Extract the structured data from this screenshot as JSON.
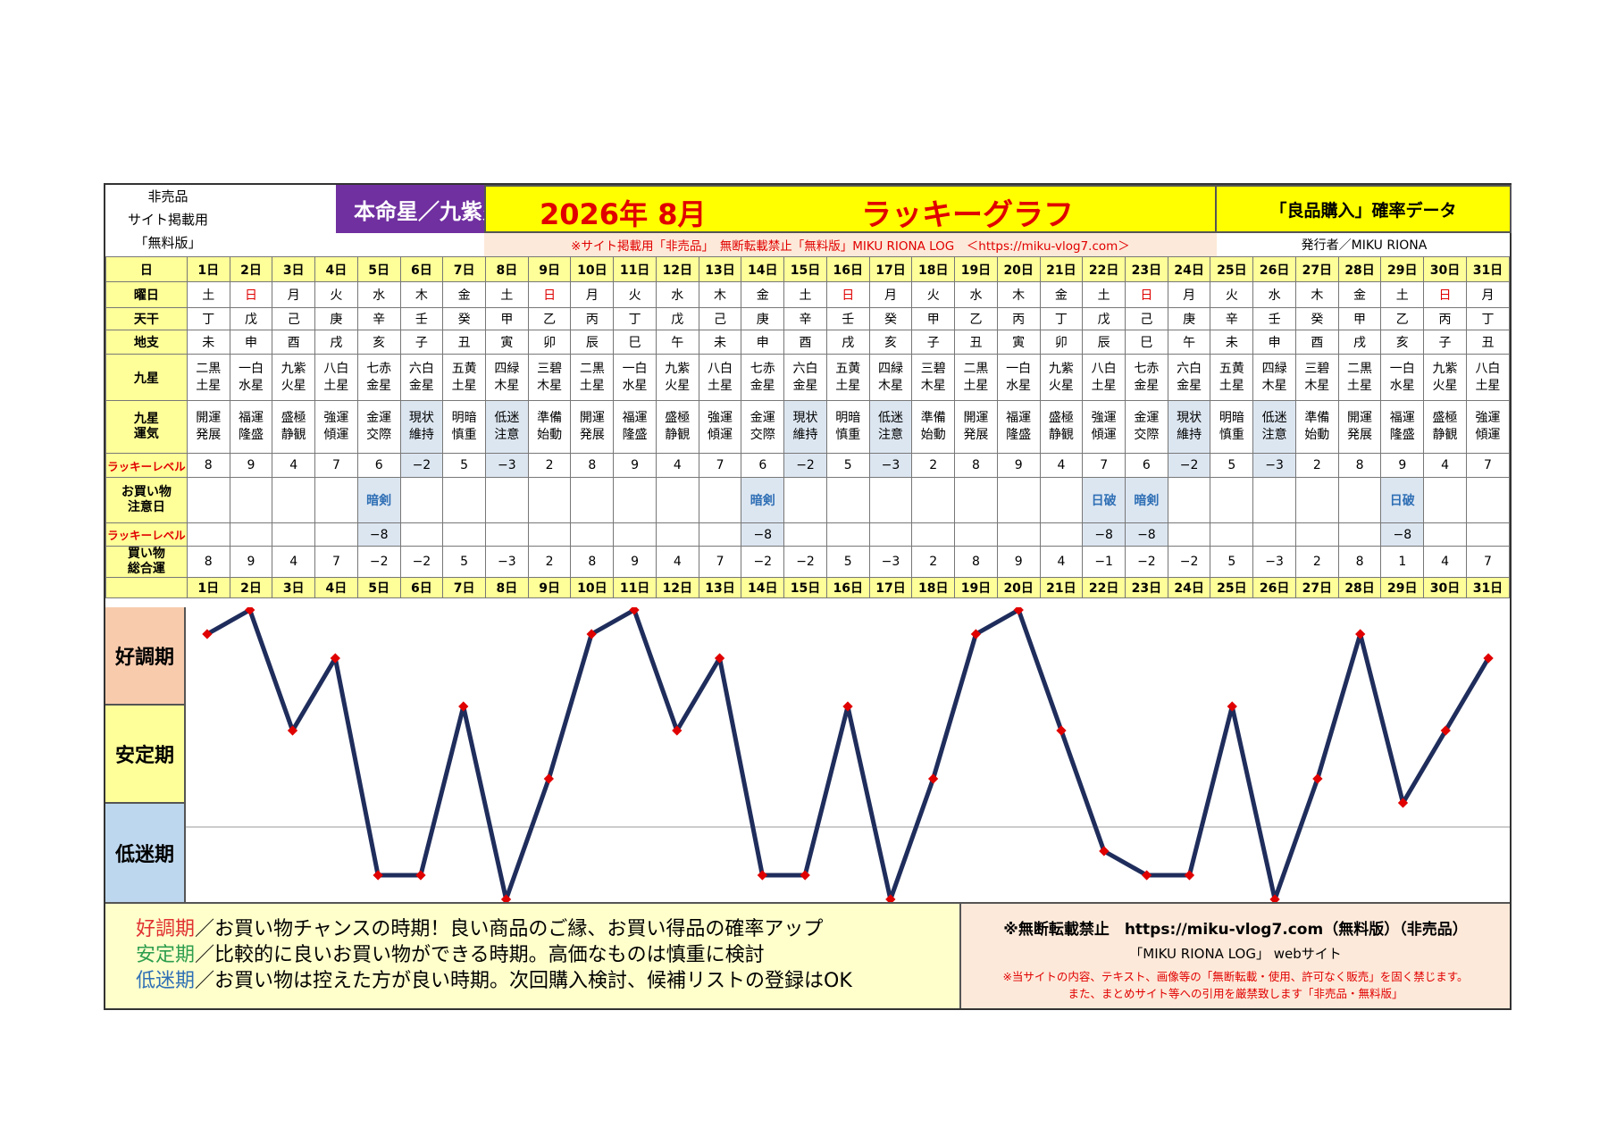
{
  "header": {
    "nonsale_lines": [
      "非売品",
      "サイト掲載用",
      "「無料版」"
    ],
    "honmei": "本命星／九紫火星",
    "year_month": "2026年 8月",
    "title": "ラッキーグラフ",
    "data_title": "「良品購入」確率データ",
    "notice": "※サイト掲載用「非売品」　無断転載禁止「無料版」MIKU RIONA LOG　＜https://miku-vlog7.com＞",
    "publisher": "発行者／MIKU RIONA"
  },
  "row_labels": {
    "day": "日",
    "weekday": "曜日",
    "tenkan": "天干",
    "chishi": "地支",
    "kyusei": "九星",
    "kyusei_unki": [
      "九星",
      "運気"
    ],
    "lucky_level": "ラッキーレベル",
    "caution_day": [
      "お買い物",
      "注意日"
    ],
    "lucky_level2": "ラッキーレベル",
    "total": [
      "買い物",
      "総合運"
    ]
  },
  "days": [
    "1日",
    "2日",
    "3日",
    "4日",
    "5日",
    "6日",
    "7日",
    "8日",
    "9日",
    "10日",
    "11日",
    "12日",
    "13日",
    "14日",
    "15日",
    "16日",
    "17日",
    "18日",
    "19日",
    "20日",
    "21日",
    "22日",
    "23日",
    "24日",
    "25日",
    "26日",
    "27日",
    "28日",
    "29日",
    "30日",
    "31日"
  ],
  "weekdays": [
    "土",
    "日",
    "月",
    "火",
    "水",
    "木",
    "金",
    "土",
    "日",
    "月",
    "火",
    "水",
    "木",
    "金",
    "土",
    "日",
    "月",
    "火",
    "水",
    "木",
    "金",
    "土",
    "日",
    "月",
    "火",
    "水",
    "木",
    "金",
    "土",
    "日",
    "月"
  ],
  "sunday_indices": [
    1,
    8,
    15,
    22,
    29
  ],
  "tenkan": [
    "丁",
    "戊",
    "己",
    "庚",
    "辛",
    "壬",
    "癸",
    "甲",
    "乙",
    "丙",
    "丁",
    "戊",
    "己",
    "庚",
    "辛",
    "壬",
    "癸",
    "甲",
    "乙",
    "丙",
    "丁",
    "戊",
    "己",
    "庚",
    "辛",
    "壬",
    "癸",
    "甲",
    "乙",
    "丙",
    "丁"
  ],
  "chishi": [
    "未",
    "申",
    "酉",
    "戌",
    "亥",
    "子",
    "丑",
    "寅",
    "卯",
    "辰",
    "巳",
    "午",
    "未",
    "申",
    "酉",
    "戌",
    "亥",
    "子",
    "丑",
    "寅",
    "卯",
    "辰",
    "巳",
    "午",
    "未",
    "申",
    "酉",
    "戌",
    "亥",
    "子",
    "丑"
  ],
  "kyusei": [
    [
      "二黒",
      "土星"
    ],
    [
      "一白",
      "水星"
    ],
    [
      "九紫",
      "火星"
    ],
    [
      "八白",
      "土星"
    ],
    [
      "七赤",
      "金星"
    ],
    [
      "六白",
      "金星"
    ],
    [
      "五黄",
      "土星"
    ],
    [
      "四緑",
      "木星"
    ],
    [
      "三碧",
      "木星"
    ],
    [
      "二黒",
      "土星"
    ],
    [
      "一白",
      "水星"
    ],
    [
      "九紫",
      "火星"
    ],
    [
      "八白",
      "土星"
    ],
    [
      "七赤",
      "金星"
    ],
    [
      "六白",
      "金星"
    ],
    [
      "五黄",
      "土星"
    ],
    [
      "四緑",
      "木星"
    ],
    [
      "三碧",
      "木星"
    ],
    [
      "二黒",
      "土星"
    ],
    [
      "一白",
      "水星"
    ],
    [
      "九紫",
      "火星"
    ],
    [
      "八白",
      "土星"
    ],
    [
      "七赤",
      "金星"
    ],
    [
      "六白",
      "金星"
    ],
    [
      "五黄",
      "土星"
    ],
    [
      "四緑",
      "木星"
    ],
    [
      "三碧",
      "木星"
    ],
    [
      "二黒",
      "土星"
    ],
    [
      "一白",
      "水星"
    ],
    [
      "九紫",
      "火星"
    ],
    [
      "八白",
      "土星"
    ]
  ],
  "unki": [
    [
      "開運",
      "発展"
    ],
    [
      "福運",
      "隆盛"
    ],
    [
      "盛極",
      "静観"
    ],
    [
      "強運",
      "傾運"
    ],
    [
      "金運",
      "交際"
    ],
    [
      "現状",
      "維持"
    ],
    [
      "明暗",
      "慎重"
    ],
    [
      "低迷",
      "注意"
    ],
    [
      "準備",
      "始動"
    ],
    [
      "開運",
      "発展"
    ],
    [
      "福運",
      "隆盛"
    ],
    [
      "盛極",
      "静観"
    ],
    [
      "強運",
      "傾運"
    ],
    [
      "金運",
      "交際"
    ],
    [
      "現状",
      "維持"
    ],
    [
      "明暗",
      "慎重"
    ],
    [
      "低迷",
      "注意"
    ],
    [
      "準備",
      "始動"
    ],
    [
      "開運",
      "発展"
    ],
    [
      "福運",
      "隆盛"
    ],
    [
      "盛極",
      "静観"
    ],
    [
      "強運",
      "傾運"
    ],
    [
      "金運",
      "交際"
    ],
    [
      "現状",
      "維持"
    ],
    [
      "明暗",
      "慎重"
    ],
    [
      "低迷",
      "注意"
    ],
    [
      "準備",
      "始動"
    ],
    [
      "開運",
      "発展"
    ],
    [
      "福運",
      "隆盛"
    ],
    [
      "盛極",
      "静観"
    ],
    [
      "強運",
      "傾運"
    ]
  ],
  "lucky_levels": [
    "8",
    "9",
    "4",
    "7",
    "6",
    "−2",
    "5",
    "−3",
    "2",
    "8",
    "9",
    "4",
    "7",
    "6",
    "−2",
    "5",
    "−3",
    "2",
    "8",
    "9",
    "4",
    "7",
    "6",
    "−2",
    "5",
    "−3",
    "2",
    "8",
    "9",
    "4",
    "7"
  ],
  "caution": [
    "",
    "",
    "",
    "",
    "暗剣",
    "",
    "",
    "",
    "",
    "",
    "",
    "",
    "",
    "暗剣",
    "",
    "",
    "",
    "",
    "",
    "",
    "",
    "日破",
    "暗剣",
    "",
    "",
    "",
    "",
    "",
    "日破",
    "",
    ""
  ],
  "lucky_levels2": [
    "",
    "",
    "",
    "",
    "−8",
    "",
    "",
    "",
    "",
    "",
    "",
    "",
    "",
    "−8",
    "",
    "",
    "",
    "",
    "",
    "",
    "",
    "−8",
    "−8",
    "",
    "",
    "",
    "",
    "",
    "−8",
    "",
    ""
  ],
  "totals": [
    "8",
    "9",
    "4",
    "7",
    "−2",
    "−2",
    "5",
    "−3",
    "2",
    "8",
    "9",
    "4",
    "7",
    "−2",
    "−2",
    "5",
    "−3",
    "2",
    "8",
    "9",
    "4",
    "−1",
    "−2",
    "−2",
    "5",
    "−3",
    "2",
    "8",
    "1",
    "4",
    "7"
  ],
  "zones": [
    {
      "label": "好調期",
      "color": "#f8cbad"
    },
    {
      "label": "安定期",
      "color": "#ffff99"
    },
    {
      "label": "低迷期",
      "color": "#bdd7ee"
    }
  ],
  "legend": [
    {
      "term": "好調期",
      "text": "／お買い物チャンスの時期！良い商品のご縁、お買い得品の確率アップ",
      "color": "#e03030"
    },
    {
      "term": "安定期",
      "text": "／比較的に良いお買い物ができる時期。高価なものは慎重に検討",
      "color": "#2e9e4e"
    },
    {
      "term": "低迷期",
      "text": "／お買い物は控えた方が良い時期。次回購入検討、候補リストの登録はOK",
      "color": "#2f6fb5"
    }
  ],
  "footer": {
    "line1": "※無断転載禁止　https://miku-vlog7.com（無料版）（非売品）",
    "line2": "「MIKU RIONA LOG」 webサイト",
    "line3": "※当サイトの内容、テキスト、画像等の「無断転載・使用、許可なく販売」を固く禁じます。",
    "line4": "また、まとめサイト等への引用を厳禁致します「非売品・無料版」"
  },
  "chart_data": {
    "type": "line",
    "x": [
      1,
      2,
      3,
      4,
      5,
      6,
      7,
      8,
      9,
      10,
      11,
      12,
      13,
      14,
      15,
      16,
      17,
      18,
      19,
      20,
      21,
      22,
      23,
      24,
      25,
      26,
      27,
      28,
      29,
      30,
      31
    ],
    "values": [
      8,
      9,
      4,
      7,
      -2,
      -2,
      5,
      -3,
      2,
      8,
      9,
      4,
      7,
      -2,
      -2,
      5,
      -3,
      2,
      8,
      9,
      4,
      -1,
      -2,
      -2,
      5,
      -3,
      2,
      8,
      1,
      4,
      7
    ],
    "ylim": [
      -3,
      9
    ],
    "line_color": "#1f2d5c",
    "marker_color": "#e00000",
    "reference_line": 0
  }
}
